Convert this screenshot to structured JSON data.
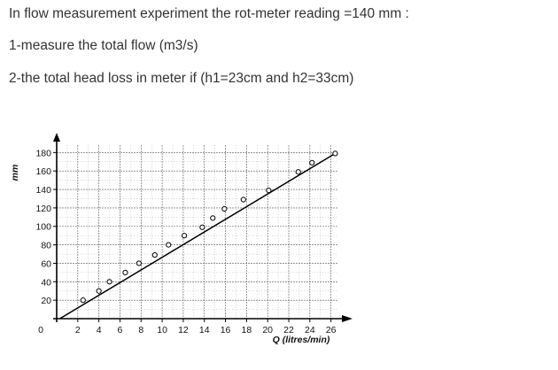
{
  "question": {
    "line1": "In flow measurement experiment the rot-meter reading =140 mm :",
    "line2": "1-measure the total flow (m3/s)",
    "line3": "2-the total head loss in meter if (h1=23cm and h2=33cm)"
  },
  "chart_data": {
    "type": "scatter",
    "title": "",
    "xlabel": "Q (litres/min)",
    "ylabel": "mm",
    "xlim": [
      0,
      26.7
    ],
    "ylim": [
      0,
      188
    ],
    "x_ticks": [
      2,
      4,
      6,
      8,
      10,
      12,
      14,
      16,
      18,
      20,
      22,
      24,
      26
    ],
    "y_ticks": [
      20,
      40,
      60,
      80,
      100,
      120,
      140,
      160,
      180
    ],
    "origin_label": "0",
    "grid": true,
    "points": [
      {
        "x": 2.5,
        "y": 20
      },
      {
        "x": 4.0,
        "y": 30
      },
      {
        "x": 5.0,
        "y": 40
      },
      {
        "x": 6.5,
        "y": 50
      },
      {
        "x": 7.8,
        "y": 60
      },
      {
        "x": 9.3,
        "y": 69
      },
      {
        "x": 10.6,
        "y": 80
      },
      {
        "x": 12.1,
        "y": 90
      },
      {
        "x": 13.8,
        "y": 99
      },
      {
        "x": 14.8,
        "y": 109
      },
      {
        "x": 15.9,
        "y": 119
      },
      {
        "x": 17.7,
        "y": 129
      },
      {
        "x": 20.1,
        "y": 139
      },
      {
        "x": 22.9,
        "y": 159
      },
      {
        "x": 24.2,
        "y": 169
      },
      {
        "x": 26.4,
        "y": 179
      }
    ],
    "fit_line": [
      {
        "x": 0.3,
        "y": 0
      },
      {
        "x": 26.4,
        "y": 179
      }
    ]
  }
}
